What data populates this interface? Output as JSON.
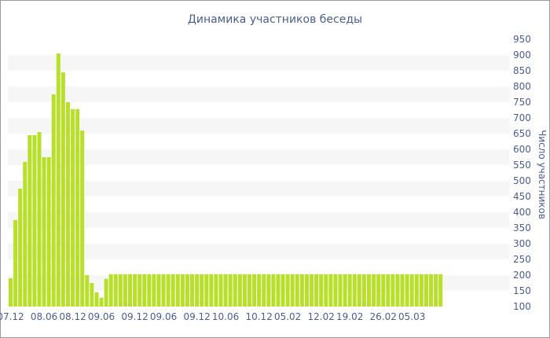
{
  "chart_data": {
    "type": "bar",
    "title": "Динамика участников беседы",
    "ylabel": "Число участников",
    "xlabel": "",
    "ylim": [
      100,
      950
    ],
    "ytick_step": 50,
    "grid": "alternating horizontal bands",
    "bar_color": "#b8e02a",
    "band_color": "#f6f6f6",
    "x_tick_labels": [
      "07.12",
      "08.06",
      "08.12",
      "09.06",
      "09.12",
      "09.06",
      "09.12",
      "10.06",
      "10.12",
      "05.02",
      "12.02",
      "19.02",
      "26.02",
      "05.03"
    ],
    "x_tick_bar_index": [
      0,
      7,
      13,
      19,
      26,
      32,
      39,
      45,
      52,
      58,
      65,
      71,
      78,
      84
    ],
    "values": [
      190,
      375,
      475,
      560,
      645,
      645,
      655,
      575,
      575,
      775,
      905,
      845,
      750,
      728,
      728,
      660,
      200,
      175,
      145,
      128,
      188,
      203,
      203,
      203,
      203,
      203,
      203,
      203,
      203,
      203,
      203,
      203,
      203,
      203,
      203,
      203,
      203,
      203,
      203,
      203,
      203,
      203,
      203,
      203,
      203,
      203,
      203,
      203,
      203,
      203,
      203,
      203,
      203,
      203,
      203,
      203,
      203,
      203,
      203,
      203,
      203,
      203,
      203,
      203,
      203,
      203,
      203,
      203,
      203,
      203,
      203,
      203,
      203,
      203,
      203,
      203,
      203,
      203,
      203,
      203,
      203,
      203,
      203,
      203,
      203,
      203,
      203,
      203,
      203,
      203,
      203
    ]
  }
}
